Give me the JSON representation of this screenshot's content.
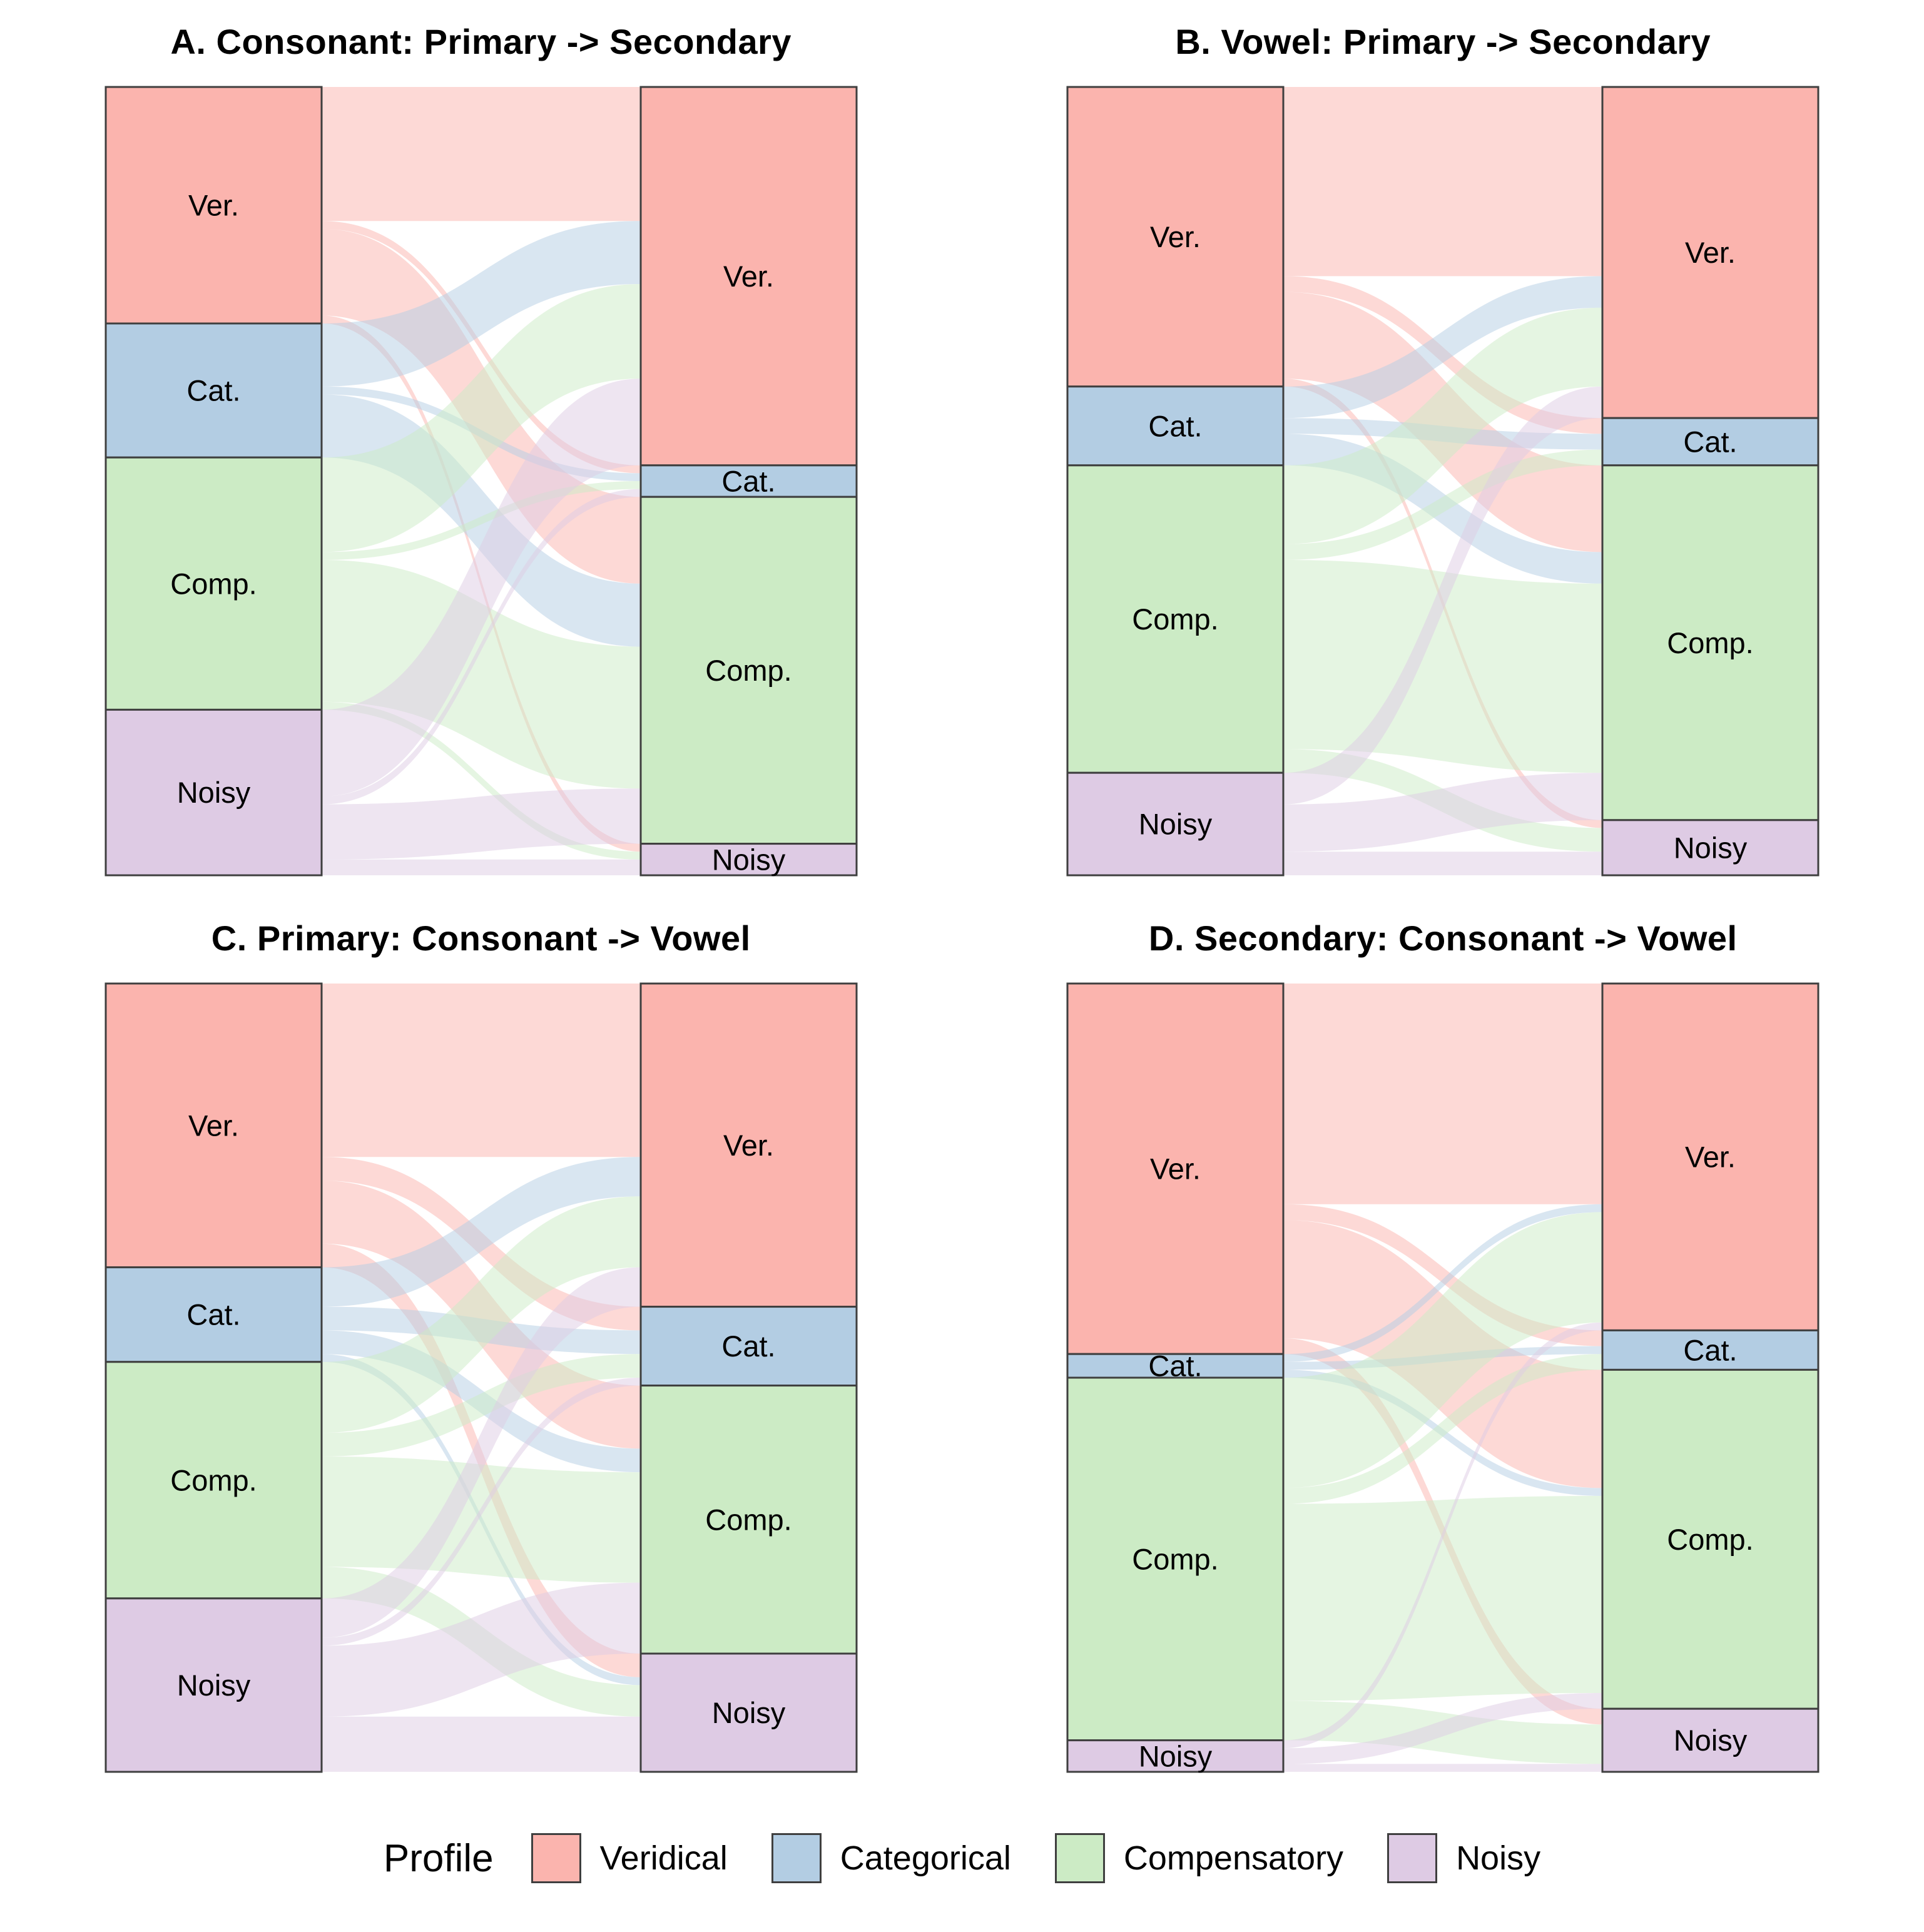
{
  "legend": {
    "title": "Profile",
    "items": [
      {
        "label": "Veridical",
        "color": "#FBB4AE"
      },
      {
        "label": "Categorical",
        "color": "#B3CDE3"
      },
      {
        "label": "Compensatory",
        "color": "#CCEBC5"
      },
      {
        "label": "Noisy",
        "color": "#DECBE4"
      }
    ]
  },
  "chart_data": [
    {
      "type": "alluvial",
      "title": "A. Consonant: Primary -> Secondary",
      "axes": [
        "Primary",
        "Secondary"
      ],
      "strata": [
        "Ver.",
        "Cat.",
        "Comp.",
        "Noisy"
      ],
      "stratum_colors": [
        "#FBB4AE",
        "#B3CDE3",
        "#CCEBC5",
        "#DECBE4"
      ],
      "left_totals_pct": [
        30,
        17,
        32,
        21
      ],
      "right_totals_pct": [
        48,
        4,
        44,
        4
      ],
      "flows": [
        [
          17,
          1,
          11,
          1
        ],
        [
          8,
          1,
          8,
          0
        ],
        [
          12,
          1,
          18,
          1
        ],
        [
          11,
          1,
          7,
          2
        ]
      ]
    },
    {
      "type": "alluvial",
      "title": "B. Vowel: Primary -> Secondary",
      "axes": [
        "Primary",
        "Secondary"
      ],
      "strata": [
        "Ver.",
        "Cat.",
        "Comp.",
        "Noisy"
      ],
      "stratum_colors": [
        "#FBB4AE",
        "#B3CDE3",
        "#CCEBC5",
        "#DECBE4"
      ],
      "left_totals_pct": [
        38,
        10,
        39,
        13
      ],
      "right_totals_pct": [
        42,
        6,
        45,
        7
      ],
      "flows": [
        [
          24,
          2,
          11,
          1
        ],
        [
          4,
          2,
          4,
          0
        ],
        [
          10,
          2,
          24,
          3
        ],
        [
          4,
          0,
          6,
          3
        ]
      ]
    },
    {
      "type": "alluvial",
      "title": "C. Primary: Consonant -> Vowel",
      "axes": [
        "Consonant",
        "Vowel"
      ],
      "strata": [
        "Ver.",
        "Cat.",
        "Comp.",
        "Noisy"
      ],
      "stratum_colors": [
        "#FBB4AE",
        "#B3CDE3",
        "#CCEBC5",
        "#DECBE4"
      ],
      "left_totals_pct": [
        36,
        12,
        30,
        22
      ],
      "right_totals_pct": [
        41,
        10,
        34,
        15
      ],
      "flows": [
        [
          22,
          3,
          8,
          3
        ],
        [
          5,
          3,
          3,
          1
        ],
        [
          9,
          3,
          14,
          4
        ],
        [
          5,
          1,
          9,
          7
        ]
      ]
    },
    {
      "type": "alluvial",
      "title": "D. Secondary: Consonant -> Vowel",
      "axes": [
        "Consonant",
        "Vowel"
      ],
      "strata": [
        "Ver.",
        "Cat.",
        "Comp.",
        "Noisy"
      ],
      "stratum_colors": [
        "#FBB4AE",
        "#B3CDE3",
        "#CCEBC5",
        "#DECBE4"
      ],
      "left_totals_pct": [
        47,
        3,
        46,
        4
      ],
      "right_totals_pct": [
        44,
        5,
        43,
        8
      ],
      "flows": [
        [
          28,
          2,
          15,
          2
        ],
        [
          1,
          1,
          1,
          0
        ],
        [
          14,
          2,
          25,
          5
        ],
        [
          1,
          0,
          2,
          1
        ]
      ]
    }
  ]
}
